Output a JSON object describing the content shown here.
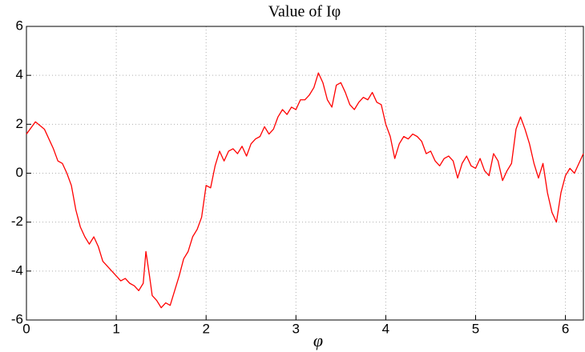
{
  "chart_data": {
    "type": "line",
    "title": "Value of Iφ",
    "xlabel": "φ",
    "x": [
      0,
      0.1,
      0.2,
      0.3,
      0.35,
      0.4,
      0.45,
      0.5,
      0.55,
      0.6,
      0.65,
      0.7,
      0.75,
      0.8,
      0.85,
      0.9,
      0.95,
      1.0,
      1.05,
      1.1,
      1.15,
      1.2,
      1.25,
      1.3,
      1.33,
      1.37,
      1.4,
      1.45,
      1.5,
      1.55,
      1.6,
      1.65,
      1.7,
      1.75,
      1.8,
      1.85,
      1.9,
      1.95,
      2.0,
      2.05,
      2.1,
      2.15,
      2.2,
      2.25,
      2.3,
      2.35,
      2.4,
      2.45,
      2.5,
      2.55,
      2.6,
      2.65,
      2.7,
      2.75,
      2.8,
      2.85,
      2.9,
      2.95,
      3.0,
      3.05,
      3.1,
      3.15,
      3.2,
      3.25,
      3.3,
      3.35,
      3.4,
      3.45,
      3.5,
      3.55,
      3.6,
      3.65,
      3.7,
      3.75,
      3.8,
      3.85,
      3.9,
      3.95,
      4.0,
      4.05,
      4.1,
      4.15,
      4.2,
      4.25,
      4.3,
      4.35,
      4.4,
      4.45,
      4.5,
      4.55,
      4.6,
      4.65,
      4.7,
      4.75,
      4.8,
      4.85,
      4.9,
      4.95,
      5.0,
      5.05,
      5.1,
      5.15,
      5.2,
      5.25,
      5.3,
      5.35,
      5.4,
      5.45,
      5.5,
      5.55,
      5.6,
      5.65,
      5.7,
      5.75,
      5.8,
      5.85,
      5.9,
      5.95,
      6.0,
      6.05,
      6.1,
      6.15,
      6.2
    ],
    "series": [
      {
        "name": "I",
        "color": "#ff0000",
        "values": [
          1.6,
          2.1,
          1.8,
          1.0,
          0.5,
          0.4,
          0.0,
          -0.5,
          -1.5,
          -2.2,
          -2.6,
          -2.9,
          -2.6,
          -3.0,
          -3.6,
          -3.8,
          -4.0,
          -4.2,
          -4.4,
          -4.3,
          -4.5,
          -4.6,
          -4.8,
          -4.5,
          -3.2,
          -4.2,
          -5.0,
          -5.2,
          -5.5,
          -5.3,
          -5.4,
          -4.8,
          -4.2,
          -3.5,
          -3.2,
          -2.6,
          -2.3,
          -1.8,
          -0.5,
          -0.6,
          0.3,
          0.9,
          0.5,
          0.9,
          1.0,
          0.8,
          1.1,
          0.7,
          1.2,
          1.4,
          1.5,
          1.9,
          1.6,
          1.8,
          2.3,
          2.6,
          2.4,
          2.7,
          2.6,
          3.0,
          3.0,
          3.2,
          3.5,
          4.1,
          3.7,
          3.0,
          2.7,
          3.6,
          3.7,
          3.3,
          2.8,
          2.6,
          2.9,
          3.1,
          3.0,
          3.3,
          2.9,
          2.8,
          2.0,
          1.5,
          0.6,
          1.2,
          1.5,
          1.4,
          1.6,
          1.5,
          1.3,
          0.8,
          0.9,
          0.5,
          0.3,
          0.6,
          0.7,
          0.5,
          -0.2,
          0.4,
          0.7,
          0.3,
          0.2,
          0.6,
          0.1,
          -0.1,
          0.8,
          0.5,
          -0.3,
          0.1,
          0.4,
          1.8,
          2.3,
          1.8,
          1.2,
          0.4,
          -0.2,
          0.4,
          -0.8,
          -1.6,
          -2.0,
          -0.8,
          -0.1,
          0.2,
          0.0,
          0.4,
          0.8
        ]
      }
    ],
    "xlim": [
      0,
      6.2
    ],
    "xticks": [
      0,
      1,
      2,
      3,
      4,
      5,
      6
    ],
    "ylim": [
      -6,
      6
    ],
    "yticks": [
      -6,
      -4,
      -2,
      0,
      2,
      4,
      6
    ],
    "grid": true
  }
}
